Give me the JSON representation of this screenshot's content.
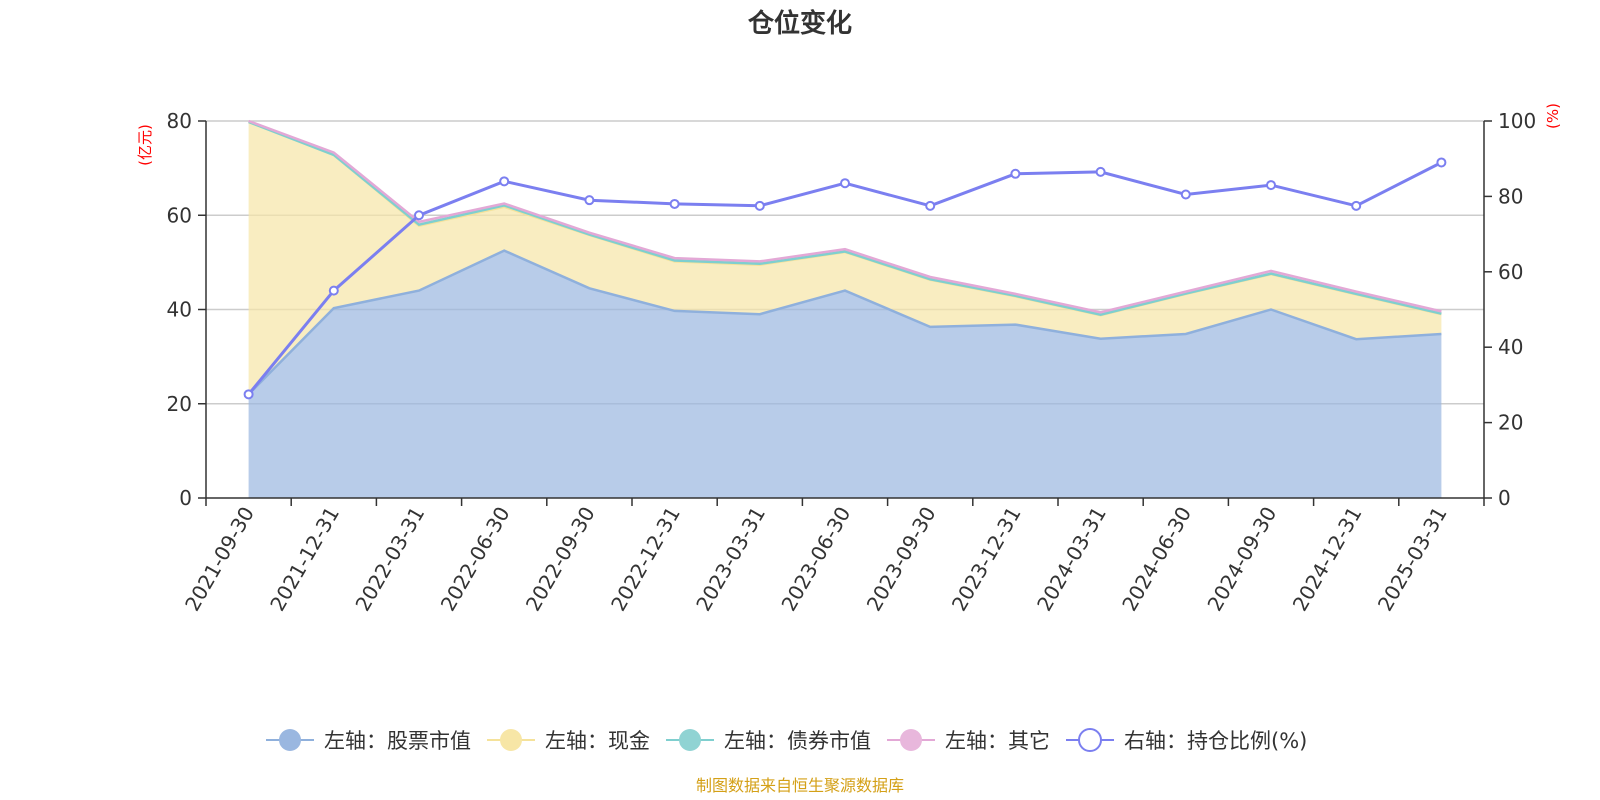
{
  "title": "仓位变化",
  "source_note": "制图数据来自恒生聚源数据库",
  "left_axis_unit": "(亿元)",
  "right_axis_unit": "(%)",
  "chart_data": {
    "type": "area",
    "title": "仓位变化",
    "categories": [
      "2021-09-30",
      "2021-12-31",
      "2022-03-31",
      "2022-06-30",
      "2022-09-30",
      "2022-12-31",
      "2023-03-31",
      "2023-06-30",
      "2023-09-30",
      "2023-12-31",
      "2024-03-31",
      "2024-06-30",
      "2024-09-30",
      "2024-12-31",
      "2025-03-31"
    ],
    "left_axis": {
      "label": "(亿元)",
      "ylim": [
        0,
        80
      ],
      "ticks": [
        0,
        20,
        40,
        60,
        80
      ]
    },
    "right_axis": {
      "label": "(%)",
      "ylim": [
        0,
        100
      ],
      "ticks": [
        0,
        20,
        40,
        60,
        80,
        100
      ]
    },
    "grid": true,
    "legend_position": "bottom",
    "series": [
      {
        "name": "左轴：股票市值",
        "axis": "left",
        "type": "area",
        "color": "#9ab7e0",
        "values": [
          22,
          40.3,
          44,
          52.5,
          44.5,
          39.7,
          39,
          44,
          36.3,
          36.8,
          33.8,
          34.8,
          40,
          33.7,
          34.8
        ]
      },
      {
        "name": "左轴：现金",
        "axis": "left",
        "type": "area",
        "color": "#f7e6a6",
        "values": [
          57.8,
          32.5,
          13.8,
          9.3,
          11.3,
          10.5,
          10.5,
          8.2,
          10,
          6,
          5,
          8.5,
          7.5,
          9.5,
          4.2
        ]
      },
      {
        "name": "左轴：债券市值",
        "axis": "left",
        "type": "area",
        "color": "#90d3d3",
        "values": [
          0,
          0,
          0.2,
          0.3,
          0.1,
          0.2,
          0.2,
          0.1,
          0.1,
          0.1,
          0.1,
          0.1,
          0.1,
          0.1,
          0.1
        ]
      },
      {
        "name": "左轴：其它",
        "axis": "left",
        "type": "area",
        "color": "#e8b7dc",
        "values": [
          0.2,
          0.5,
          0.6,
          0.4,
          0.4,
          0.5,
          0.5,
          0.5,
          0.5,
          0.4,
          0.5,
          0.4,
          0.6,
          0.5,
          0.5
        ]
      },
      {
        "name": "右轴：持仓比例(%)",
        "axis": "right",
        "type": "line",
        "color": "#7b7ff0",
        "values": [
          27.5,
          55,
          75,
          84,
          79,
          78,
          77.5,
          83.5,
          77.5,
          86,
          86.5,
          80.5,
          83,
          77.5,
          89
        ]
      }
    ]
  }
}
